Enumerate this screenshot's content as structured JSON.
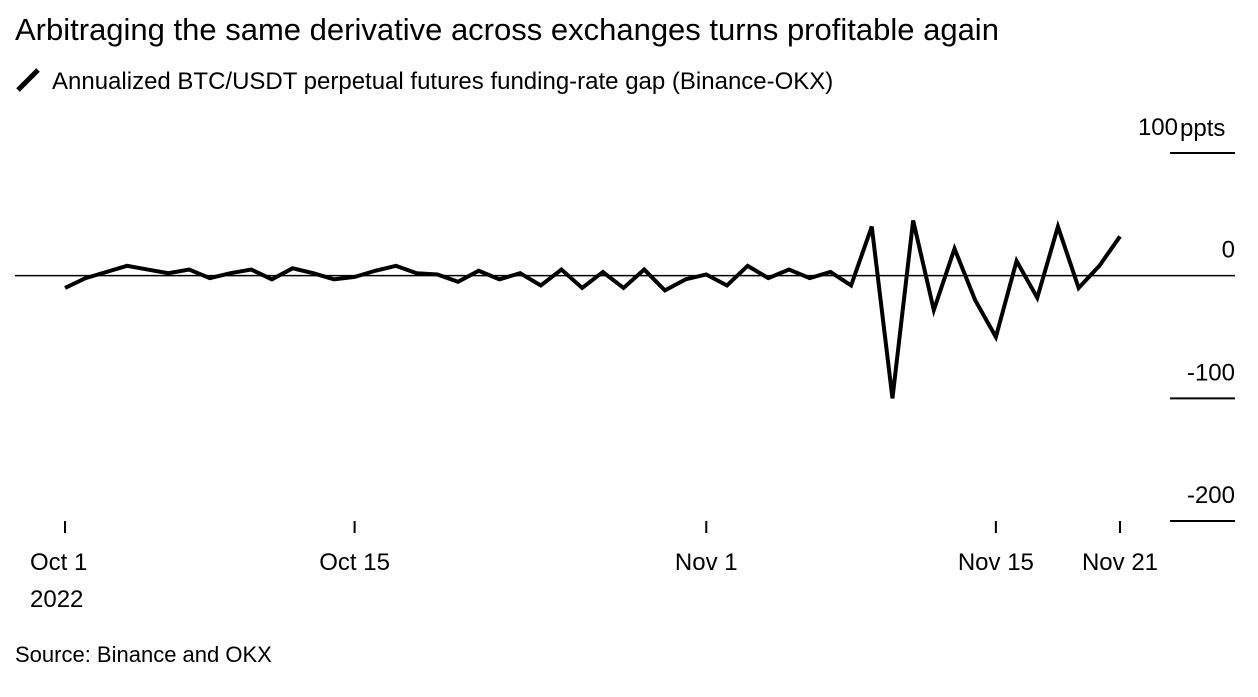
{
  "chart_data": {
    "type": "line",
    "title": "Arbitraging the same derivative across exchanges turns profitable again",
    "source": "Source: Binance and OKX",
    "year_label": "2022",
    "y_unit": "ppts",
    "x": [
      "2022-10-01",
      "2022-10-02",
      "2022-10-03",
      "2022-10-04",
      "2022-10-05",
      "2022-10-06",
      "2022-10-07",
      "2022-10-08",
      "2022-10-09",
      "2022-10-10",
      "2022-10-11",
      "2022-10-12",
      "2022-10-13",
      "2022-10-14",
      "2022-10-15",
      "2022-10-16",
      "2022-10-17",
      "2022-10-18",
      "2022-10-19",
      "2022-10-20",
      "2022-10-21",
      "2022-10-22",
      "2022-10-23",
      "2022-10-24",
      "2022-10-25",
      "2022-10-26",
      "2022-10-27",
      "2022-10-28",
      "2022-10-29",
      "2022-10-30",
      "2022-10-31",
      "2022-11-01",
      "2022-11-02",
      "2022-11-03",
      "2022-11-04",
      "2022-11-05",
      "2022-11-06",
      "2022-11-07",
      "2022-11-08",
      "2022-11-09",
      "2022-11-10",
      "2022-11-11",
      "2022-11-12",
      "2022-11-13",
      "2022-11-14",
      "2022-11-15",
      "2022-11-16",
      "2022-11-17",
      "2022-11-18",
      "2022-11-19",
      "2022-11-20",
      "2022-11-21"
    ],
    "series": [
      {
        "name": "Annualized BTC/USDT perpetual futures funding-rate gap (Binance-OKX)",
        "color": "#000000",
        "values": [
          -10,
          -2,
          3,
          8,
          5,
          2,
          5,
          -2,
          2,
          5,
          -3,
          6,
          2,
          -3,
          -1,
          4,
          8,
          2,
          1,
          -5,
          4,
          -3,
          2,
          -8,
          5,
          -10,
          3,
          -10,
          5,
          -12,
          -3,
          1,
          -8,
          8,
          -2,
          5,
          -2,
          3,
          -8,
          40,
          -100,
          45,
          -28,
          22,
          -20,
          -50,
          12,
          -18,
          40,
          -10,
          8,
          32
        ]
      }
    ],
    "xlim": [
      "2022-10-01",
      "2022-11-21"
    ],
    "xticks": [
      {
        "value": "2022-10-01",
        "label": "Oct 1"
      },
      {
        "value": "2022-10-15",
        "label": "Oct 15"
      },
      {
        "value": "2022-11-01",
        "label": "Nov 1"
      },
      {
        "value": "2022-11-15",
        "label": "Nov 15"
      },
      {
        "value": "2022-11-21",
        "label": "Nov 21"
      }
    ],
    "ylim": [
      -200,
      100
    ],
    "yticks": [
      100,
      0,
      -100,
      -200
    ]
  }
}
